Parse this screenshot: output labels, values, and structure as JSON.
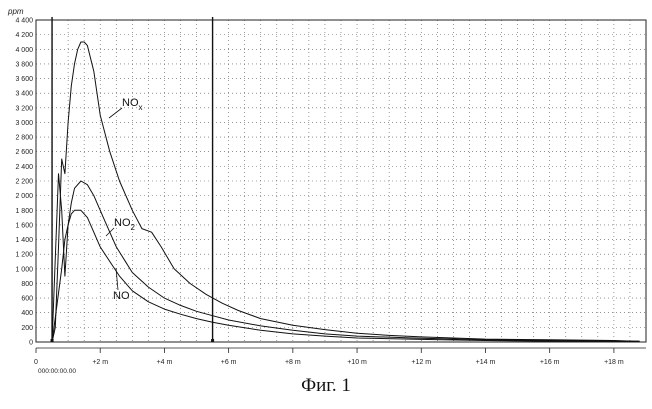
{
  "caption": "Фиг. 1",
  "chart_data": {
    "type": "line",
    "title": "",
    "xlabel": "",
    "ylabel": "ppm",
    "x_unit": "minutes",
    "xlim": [
      0,
      19
    ],
    "ylim": [
      0,
      4400
    ],
    "grid": true,
    "y_ticks": [
      0,
      200,
      400,
      600,
      800,
      1000,
      1200,
      1400,
      1600,
      1800,
      2000,
      2200,
      2400,
      2600,
      2800,
      3000,
      3200,
      3400,
      3600,
      3800,
      4000,
      4200,
      4400
    ],
    "y_tick_labels": [
      "0",
      "200",
      "400",
      "600",
      "800",
      "1 000",
      "1 200",
      "1 400",
      "1 600",
      "1 800",
      "2 000",
      "2 200",
      "2 400",
      "2 600",
      "2 800",
      "3 000",
      "3 200",
      "3 400",
      "3 600",
      "3 800",
      "4 000",
      "4 200",
      "4 400"
    ],
    "x_ticks": [
      0,
      2,
      4,
      6,
      8,
      10,
      12,
      14,
      16,
      18
    ],
    "x_tick_labels": [
      "0",
      "+2 m",
      "+4 m",
      "+6 m",
      "+8 m",
      "+10 m",
      "+12 m",
      "+14 m",
      "+16 m",
      "+18 m"
    ],
    "x_origin_label": "000:00:00.00",
    "markers": [
      0.5,
      5.5
    ],
    "series": [
      {
        "name": "NOx",
        "x": [
          0.5,
          0.6,
          0.7,
          0.8,
          0.9,
          1.0,
          1.1,
          1.2,
          1.3,
          1.4,
          1.5,
          1.6,
          1.8,
          2.0,
          2.3,
          2.6,
          3.0,
          3.3,
          3.6,
          3.9,
          4.3,
          4.8,
          5.3,
          5.8,
          6.3,
          7.0,
          8.0,
          9.0,
          10.0,
          11.0,
          12.0,
          14.0,
          16.0,
          18.0,
          18.8
        ],
        "y": [
          0,
          200,
          1300,
          2500,
          2300,
          3000,
          3500,
          3800,
          4000,
          4100,
          4100,
          4050,
          3700,
          3100,
          2600,
          2200,
          1800,
          1550,
          1500,
          1300,
          1000,
          800,
          650,
          530,
          430,
          320,
          230,
          170,
          120,
          90,
          70,
          40,
          30,
          20,
          10
        ]
      },
      {
        "name": "NO2",
        "x": [
          0.5,
          0.7,
          0.8,
          0.9,
          1.0,
          1.1,
          1.2,
          1.4,
          1.6,
          1.8,
          2.0,
          2.2,
          2.5,
          3.0,
          3.5,
          4.0,
          4.5,
          5.0,
          5.5,
          6.0,
          7.0,
          8.0,
          9.0,
          10.0,
          12.0,
          14.0,
          16.0,
          18.0,
          18.8
        ],
        "y": [
          0,
          2300,
          1800,
          900,
          1600,
          1900,
          2100,
          2200,
          2150,
          2000,
          1800,
          1600,
          1300,
          950,
          750,
          600,
          500,
          420,
          360,
          300,
          220,
          160,
          110,
          80,
          50,
          30,
          20,
          15,
          10
        ]
      },
      {
        "name": "NO",
        "x": [
          0.5,
          0.8,
          0.9,
          1.0,
          1.1,
          1.2,
          1.4,
          1.6,
          1.8,
          2.0,
          2.3,
          2.6,
          3.0,
          3.5,
          4.0,
          4.5,
          5.0,
          5.5,
          6.0,
          7.0,
          8.0,
          9.0,
          10.0,
          12.0,
          14.0,
          16.0,
          18.0,
          18.8
        ],
        "y": [
          0,
          1000,
          1400,
          1600,
          1750,
          1800,
          1800,
          1700,
          1500,
          1300,
          1100,
          900,
          700,
          550,
          450,
          380,
          320,
          270,
          230,
          160,
          110,
          80,
          55,
          35,
          20,
          12,
          8,
          5
        ]
      }
    ],
    "annotations": [
      {
        "series": "NOx",
        "base": "NO",
        "sub": "x"
      },
      {
        "series": "NO2",
        "base": "NO",
        "sub": "2"
      },
      {
        "series": "NO",
        "base": "NO",
        "sub": ""
      }
    ]
  }
}
